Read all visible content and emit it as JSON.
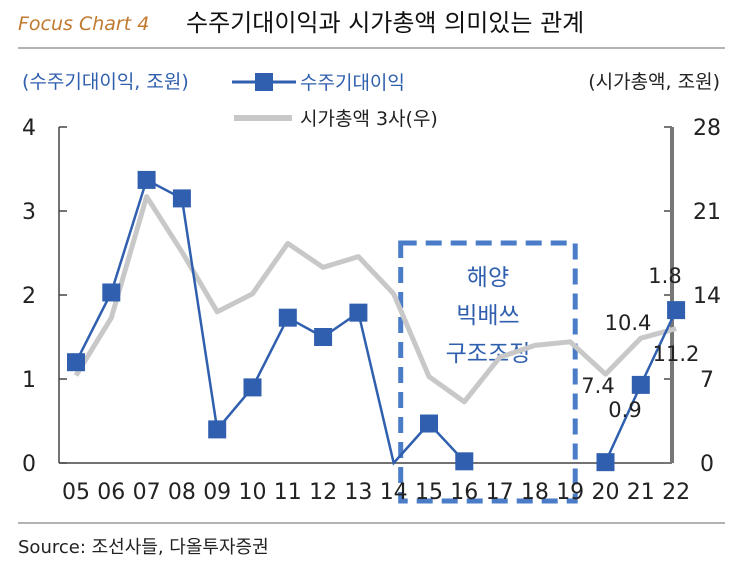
{
  "title_prefix": "Focus Chart 4",
  "title": "수주기대이익과 시가총액 의미있는 관계",
  "source": "Source: 조선사들, 다올투자증권",
  "colors": {
    "title_prefix": "#c0792f",
    "orders_series": "#2f5fae",
    "cap_series": "#c8c8c8",
    "right_axis": "#777777",
    "box": "#4a7cc7",
    "box_text": "#2f5fae"
  },
  "chart_data": {
    "type": "line",
    "x": [
      "05",
      "06",
      "07",
      "08",
      "09",
      "10",
      "11",
      "12",
      "13",
      "14",
      "15",
      "16",
      "17",
      "18",
      "19",
      "20",
      "21",
      "22"
    ],
    "left_axis": {
      "label": "(수주기대이익, 조원)",
      "ylim": [
        0,
        4
      ],
      "ticks": [
        "4",
        "3",
        "2",
        "1",
        "0"
      ]
    },
    "right_axis": {
      "label": "(시가총액, 조원)",
      "ylim": [
        0,
        28
      ],
      "ticks": [
        "28",
        "21",
        "14",
        "7",
        "0"
      ]
    },
    "series": [
      {
        "name": "수주기대이익",
        "axis": "left",
        "marker": "square",
        "values": [
          1.2,
          2.03,
          3.37,
          3.15,
          0.4,
          0.9,
          1.73,
          1.5,
          1.79,
          0,
          0.47,
          0.02,
          null,
          null,
          null,
          0.01,
          0.93,
          1.82
        ]
      },
      {
        "name": "시가총액 3사(우)",
        "axis": "right",
        "marker": "none",
        "values": [
          7.3,
          12.1,
          22.2,
          17.6,
          12.6,
          14.1,
          18.3,
          16.3,
          17.2,
          14.1,
          7.2,
          5.1,
          8.8,
          9.8,
          10.1,
          7.4,
          10.4,
          11.2
        ]
      }
    ],
    "annotations": [
      {
        "text": "1.8",
        "label_for": "22"
      },
      {
        "text": "10.4",
        "label_for": "21"
      },
      {
        "text": "11.2",
        "label_for": "22"
      },
      {
        "text": "7.4",
        "label_for": "20"
      },
      {
        "text": "0.9",
        "label_for": "21"
      }
    ],
    "highlight_box": {
      "lines": [
        "해양",
        "빅배쓰",
        "구조조정"
      ],
      "x_from": "14",
      "x_to": "19"
    },
    "legend_placement": "top-center",
    "grid": false
  }
}
